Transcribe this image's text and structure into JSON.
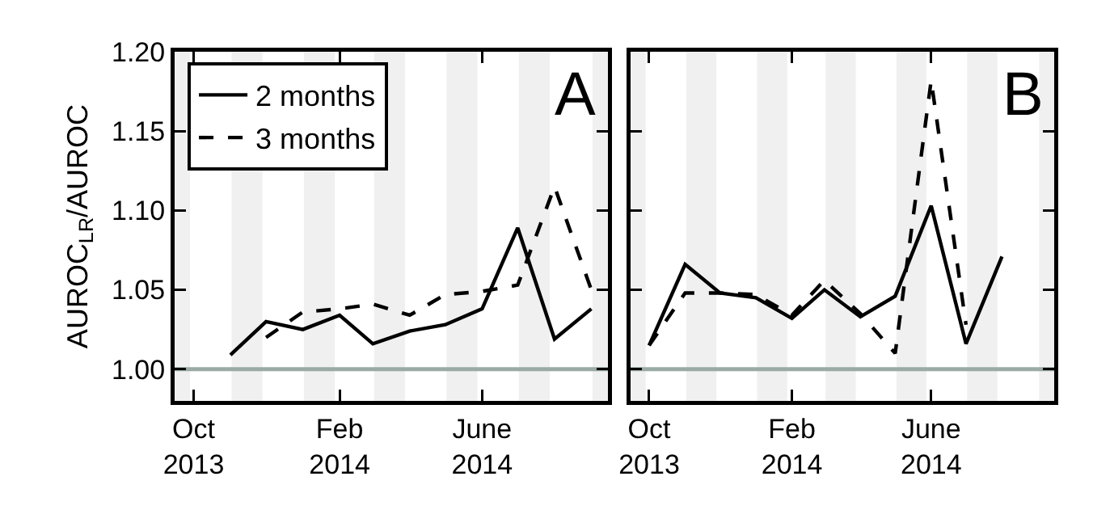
{
  "chart_data": [
    {
      "type": "line",
      "ylabel": "AUROC$_{LR}$/AUROC",
      "annotations": [
        "A"
      ],
      "legend": "top left",
      "grid": false,
      "xlim": [
        "2013-09-15",
        "2014-09-15"
      ],
      "xticks": [
        {
          "value": "2013-10-01",
          "label": "Oct\n2013"
        },
        {
          "value": "2014-02-01",
          "label": "Feb\n2014"
        },
        {
          "value": "2014-06-01",
          "label": "June\n2014"
        }
      ],
      "ylim": [
        0.98,
        1.2
      ],
      "yticks": [
        {
          "value": 1.0,
          "label": "1.00"
        },
        {
          "value": 1.05,
          "label": "1.05"
        },
        {
          "value": 1.1,
          "label": "1.10"
        },
        {
          "value": 1.15,
          "label": "1.15"
        },
        {
          "value": 1.2,
          "label": "1.20"
        }
      ],
      "ref_lines": [
        {
          "axis": "y",
          "value": 1.0,
          "color": "#9aaba6"
        }
      ],
      "bands": [
        {
          "axis": "x",
          "from": "2013-09-02",
          "to": "2013-09-28",
          "color": "#f0f0f0"
        },
        {
          "axis": "x",
          "from": "2013-11-02",
          "to": "2013-11-28",
          "color": "#f0f0f0"
        },
        {
          "axis": "x",
          "from": "2014-01-02",
          "to": "2014-01-28",
          "color": "#f0f0f0"
        },
        {
          "axis": "x",
          "from": "2014-03-02",
          "to": "2014-03-28",
          "color": "#f0f0f0"
        },
        {
          "axis": "x",
          "from": "2014-05-02",
          "to": "2014-05-28",
          "color": "#f0f0f0"
        },
        {
          "axis": "x",
          "from": "2014-07-02",
          "to": "2014-07-28",
          "color": "#f0f0f0"
        },
        {
          "axis": "x",
          "from": "2014-09-02",
          "to": "2014-09-28",
          "color": "#f0f0f0"
        }
      ],
      "series": [
        {
          "name": "2 months",
          "color": "#000000",
          "line_style": "solid",
          "x": [
            "2013-11-01",
            "2013-12-01",
            "2014-01-01",
            "2014-02-01",
            "2014-03-01",
            "2014-04-01",
            "2014-05-01",
            "2014-06-01",
            "2014-07-01",
            "2014-08-01",
            "2014-09-01"
          ],
          "values": [
            1.009,
            1.03,
            1.025,
            1.034,
            1.016,
            1.024,
            1.028,
            1.038,
            1.089,
            1.019,
            1.038
          ]
        },
        {
          "name": "3 months",
          "color": "#000000",
          "line_style": "dashed",
          "x": [
            "2013-12-01",
            "2014-01-01",
            "2014-02-01",
            "2014-03-01",
            "2014-04-01",
            "2014-05-01",
            "2014-06-01",
            "2014-07-01",
            "2014-08-01",
            "2014-09-01"
          ],
          "values": [
            1.02,
            1.036,
            1.038,
            1.041,
            1.034,
            1.047,
            1.049,
            1.053,
            1.115,
            1.05
          ]
        }
      ]
    },
    {
      "type": "line",
      "annotations": [
        "B"
      ],
      "legend": false,
      "grid": false,
      "tick_labels": "x",
      "xlim": [
        "2013-09-15",
        "2014-09-15"
      ],
      "xticks": [
        {
          "value": "2013-10-01",
          "label": "Oct\n2013"
        },
        {
          "value": "2014-02-01",
          "label": "Feb\n2014"
        },
        {
          "value": "2014-06-01",
          "label": "June\n2014"
        }
      ],
      "ylim": [
        0.98,
        1.2
      ],
      "yticks": [
        {
          "value": 1.0,
          "label": null
        },
        {
          "value": 1.05,
          "label": null
        },
        {
          "value": 1.1,
          "label": null
        },
        {
          "value": 1.15,
          "label": null
        },
        {
          "value": 1.2,
          "label": null
        }
      ],
      "ref_lines": [
        {
          "axis": "y",
          "value": 1.0,
          "color": "#9aaba6"
        }
      ],
      "bands": [
        {
          "axis": "x",
          "from": "2013-09-02",
          "to": "2013-09-28",
          "color": "#f0f0f0"
        },
        {
          "axis": "x",
          "from": "2013-11-02",
          "to": "2013-11-28",
          "color": "#f0f0f0"
        },
        {
          "axis": "x",
          "from": "2014-01-02",
          "to": "2014-01-28",
          "color": "#f0f0f0"
        },
        {
          "axis": "x",
          "from": "2014-03-02",
          "to": "2014-03-28",
          "color": "#f0f0f0"
        },
        {
          "axis": "x",
          "from": "2014-05-02",
          "to": "2014-05-28",
          "color": "#f0f0f0"
        },
        {
          "axis": "x",
          "from": "2014-07-02",
          "to": "2014-07-28",
          "color": "#f0f0f0"
        },
        {
          "axis": "x",
          "from": "2014-09-02",
          "to": "2014-09-28",
          "color": "#f0f0f0"
        }
      ],
      "series": [
        {
          "color": "#000000",
          "line_style": "solid",
          "x": [
            "2013-10-01",
            "2013-11-01",
            "2013-12-01",
            "2014-01-01",
            "2014-02-01",
            "2014-03-01",
            "2014-04-01",
            "2014-05-01",
            "2014-06-01",
            "2014-07-01",
            "2014-08-01"
          ],
          "values": [
            1.015,
            1.066,
            1.048,
            1.045,
            1.032,
            1.05,
            1.033,
            1.046,
            1.103,
            1.016,
            1.071
          ]
        },
        {
          "color": "#000000",
          "line_style": "dashed",
          "x": [
            "2013-10-01",
            "2013-11-01",
            "2013-12-01",
            "2014-01-01",
            "2014-02-01",
            "2014-03-01",
            "2014-04-01",
            "2014-05-01",
            "2014-06-01",
            "2014-07-01"
          ],
          "values": [
            1.015,
            1.048,
            1.048,
            1.047,
            1.034,
            1.056,
            1.035,
            1.01,
            1.182,
            1.028
          ]
        }
      ]
    }
  ]
}
